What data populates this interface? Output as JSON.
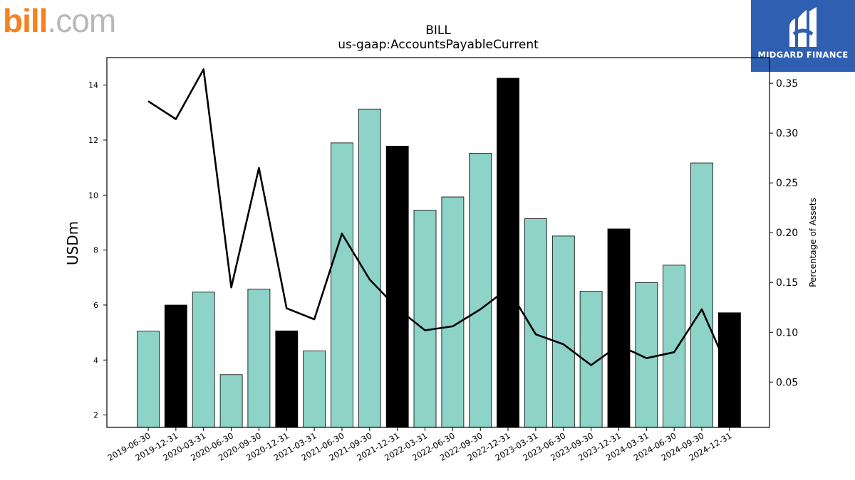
{
  "brand": {
    "logo_main": "bill",
    "logo_rest": ".com",
    "badge_text": "MIDGARD FINANCE"
  },
  "colors": {
    "bar_default": "#8dd3c7",
    "bar_q4": "#000000",
    "line": "#000000",
    "badge_bg": "#2f5fb0",
    "logo_orange": "#f58220"
  },
  "chart_data": {
    "type": "bar",
    "title": "BILL",
    "subtitle": "us-gaap:AccountsPayableCurrent",
    "ylabel": "USDm",
    "y2label": "Percentage of Assets",
    "ylim": [
      1.55,
      15.0
    ],
    "y2lim": [
      0.0045,
      0.3758
    ],
    "yticks": [
      2,
      4,
      6,
      8,
      10,
      12,
      14
    ],
    "y2ticks": [
      "0.05",
      "0.10",
      "0.15",
      "0.20",
      "0.25",
      "0.30",
      "0.35"
    ],
    "categories": [
      "2019-06-30",
      "2019-12-31",
      "2020-03-31",
      "2020-06-30",
      "2020-09-30",
      "2020-12-31",
      "2021-03-31",
      "2021-06-30",
      "2021-09-30",
      "2021-12-31",
      "2022-03-31",
      "2022-06-30",
      "2022-09-30",
      "2022-12-31",
      "2023-03-31",
      "2023-06-30",
      "2023-09-30",
      "2023-12-31",
      "2024-03-31",
      "2024-06-30",
      "2024-09-30",
      "2024-12-31"
    ],
    "series": [
      {
        "type": "bar",
        "values": [
          5.05,
          6.0,
          6.47,
          3.47,
          6.58,
          5.06,
          4.33,
          11.9,
          13.13,
          11.78,
          9.45,
          9.93,
          11.52,
          14.25,
          9.14,
          8.51,
          6.5,
          8.77,
          6.82,
          7.45,
          11.17,
          5.72
        ],
        "highlight": [
          false,
          true,
          false,
          false,
          false,
          true,
          false,
          false,
          false,
          true,
          false,
          false,
          false,
          true,
          false,
          false,
          false,
          true,
          false,
          false,
          false,
          true
        ]
      },
      {
        "type": "line",
        "axis": "right",
        "values": [
          0.332,
          0.314,
          0.364,
          0.145,
          0.265,
          0.124,
          0.113,
          0.199,
          0.153,
          0.124,
          0.102,
          0.106,
          0.123,
          0.144,
          0.098,
          0.088,
          0.067,
          0.087,
          0.074,
          0.08,
          0.123,
          0.06
        ]
      }
    ]
  }
}
